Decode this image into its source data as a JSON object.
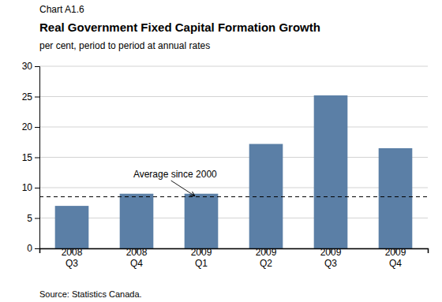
{
  "chart_data": {
    "type": "bar",
    "chart_label": "Chart A1.6",
    "title": "Real Government Fixed Capital Formation Growth",
    "subtitle": "per cent, period to period at annual rates",
    "source": "Source: Statistics Canada.",
    "categories": [
      "2008\nQ3",
      "2008\nQ4",
      "2009\nQ1",
      "2009\nQ2",
      "2009\nQ3",
      "2009\nQ4"
    ],
    "values": [
      7.0,
      9.0,
      9.0,
      17.2,
      25.2,
      16.5
    ],
    "color": "#5b7fa6",
    "reference_line": {
      "value": 8.5,
      "label": "Average since 2000"
    },
    "ylim": [
      0,
      30
    ],
    "yticks": [
      0,
      5,
      10,
      15,
      20,
      25,
      30
    ],
    "grid": true
  }
}
